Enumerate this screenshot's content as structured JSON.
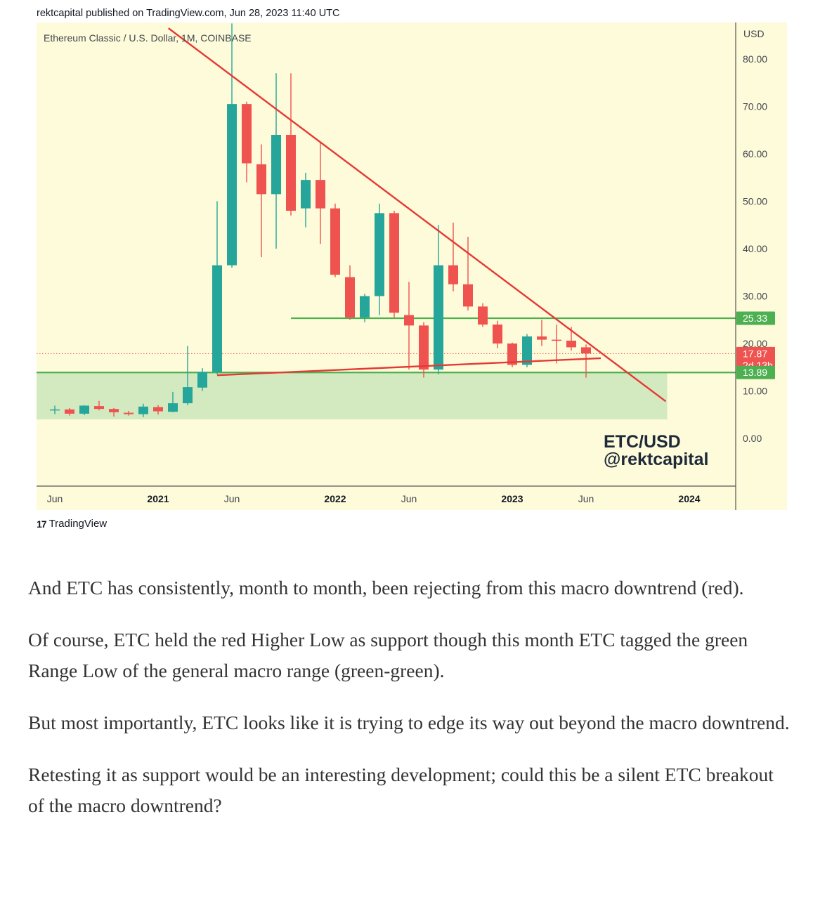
{
  "header": {
    "published": "rektcapital published on TradingView.com, Jun 28, 2023 11:40 UTC"
  },
  "chart_data": {
    "type": "candlestick",
    "title": "Ethereum Classic / U.S. Dollar, 1M, COINBASE",
    "currency": "USD",
    "ylim": [
      0,
      88
    ],
    "grid": false,
    "background": "#fdfbd9",
    "colors": {
      "up": "#26a69a",
      "down": "#ef5350",
      "line_red": "#e53935",
      "line_green": "#4caf50",
      "zone": "#d3eac0"
    },
    "y_ticks": [
      "80.00",
      "70.00",
      "60.00",
      "50.00",
      "40.00",
      "30.00",
      "20.00",
      "10.00",
      "0.00"
    ],
    "y_tick_values": [
      80,
      70,
      60,
      50,
      40,
      30,
      20,
      10,
      0
    ],
    "x_ticks": [
      {
        "label": "Jun",
        "month": 0,
        "bold": false
      },
      {
        "label": "2021",
        "month": 7,
        "bold": true
      },
      {
        "label": "Jun",
        "month": 12,
        "bold": false
      },
      {
        "label": "2022",
        "month": 19,
        "bold": true
      },
      {
        "label": "Jun",
        "month": 24,
        "bold": false
      },
      {
        "label": "2023",
        "month": 31,
        "bold": true
      },
      {
        "label": "Jun",
        "month": 36,
        "bold": false
      },
      {
        "label": "2024",
        "month": 43,
        "bold": true
      }
    ],
    "candles": [
      {
        "o": 6.0,
        "h": 6.9,
        "l": 5.1,
        "c": 6.1
      },
      {
        "o": 6.1,
        "h": 6.4,
        "l": 4.8,
        "c": 5.2
      },
      {
        "o": 5.2,
        "h": 7.0,
        "l": 4.9,
        "c": 6.9
      },
      {
        "o": 6.8,
        "h": 7.9,
        "l": 5.9,
        "c": 6.2
      },
      {
        "o": 6.2,
        "h": 6.4,
        "l": 4.6,
        "c": 5.5
      },
      {
        "o": 5.4,
        "h": 5.8,
        "l": 4.8,
        "c": 5.1
      },
      {
        "o": 5.1,
        "h": 7.3,
        "l": 4.5,
        "c": 6.7
      },
      {
        "o": 6.6,
        "h": 7.0,
        "l": 5.0,
        "c": 5.7
      },
      {
        "o": 5.6,
        "h": 9.8,
        "l": 5.5,
        "c": 7.4
      },
      {
        "o": 7.4,
        "h": 19.5,
        "l": 7.0,
        "c": 10.8
      },
      {
        "o": 10.7,
        "h": 14.8,
        "l": 10.0,
        "c": 14.0
      },
      {
        "o": 14.0,
        "h": 50.0,
        "l": 13.5,
        "c": 36.5
      },
      {
        "o": 36.5,
        "h": 87.5,
        "l": 36.0,
        "c": 70.5
      },
      {
        "o": 70.5,
        "h": 71.0,
        "l": 54.0,
        "c": 58.0
      },
      {
        "o": 57.8,
        "h": 62.0,
        "l": 38.2,
        "c": 51.5
      },
      {
        "o": 51.5,
        "h": 77.0,
        "l": 40.0,
        "c": 64.0
      },
      {
        "o": 64.0,
        "h": 77.0,
        "l": 47.0,
        "c": 48.0
      },
      {
        "o": 48.5,
        "h": 56.0,
        "l": 44.5,
        "c": 54.5
      },
      {
        "o": 54.5,
        "h": 62.5,
        "l": 41.0,
        "c": 48.5
      },
      {
        "o": 48.5,
        "h": 49.5,
        "l": 34.0,
        "c": 34.5
      },
      {
        "o": 34.0,
        "h": 36.5,
        "l": 25.0,
        "c": 25.5
      },
      {
        "o": 25.5,
        "h": 30.5,
        "l": 24.5,
        "c": 30.0
      },
      {
        "o": 30.0,
        "h": 49.5,
        "l": 26.0,
        "c": 47.5
      },
      {
        "o": 47.5,
        "h": 48.0,
        "l": 25.5,
        "c": 26.5
      },
      {
        "o": 26.0,
        "h": 33.0,
        "l": 14.5,
        "c": 23.8
      },
      {
        "o": 23.8,
        "h": 24.5,
        "l": 12.8,
        "c": 14.5
      },
      {
        "o": 14.5,
        "h": 45.0,
        "l": 13.5,
        "c": 36.5
      },
      {
        "o": 36.5,
        "h": 45.5,
        "l": 31.0,
        "c": 32.5
      },
      {
        "o": 32.5,
        "h": 42.5,
        "l": 27.0,
        "c": 27.8
      },
      {
        "o": 27.8,
        "h": 28.5,
        "l": 23.5,
        "c": 24.0
      },
      {
        "o": 24.0,
        "h": 24.8,
        "l": 19.0,
        "c": 20.0
      },
      {
        "o": 20.0,
        "h": 20.2,
        "l": 15.0,
        "c": 15.5
      },
      {
        "o": 15.5,
        "h": 22.0,
        "l": 15.0,
        "c": 21.5
      },
      {
        "o": 21.5,
        "h": 25.0,
        "l": 19.5,
        "c": 20.8
      },
      {
        "o": 20.8,
        "h": 24.0,
        "l": 15.8,
        "c": 20.6
      },
      {
        "o": 20.6,
        "h": 23.5,
        "l": 18.5,
        "c": 19.2
      },
      {
        "o": 19.2,
        "h": 19.8,
        "l": 12.8,
        "c": 17.9
      }
    ],
    "lines": [
      {
        "name": "macro-downtrend",
        "color": "red",
        "from": {
          "month": 7.7,
          "value": 86.5
        },
        "to": {
          "month": 41.4,
          "value": 7.8
        }
      },
      {
        "name": "higher-low",
        "color": "red",
        "from": {
          "month": 11.0,
          "value": 13.3
        },
        "to": {
          "month": 37.0,
          "value": 16.9
        }
      },
      {
        "name": "range-high",
        "color": "green",
        "value": 25.33,
        "from_month": 16.0,
        "to_month": 100
      },
      {
        "name": "range-low",
        "color": "green",
        "value": 13.89,
        "from_month": -100,
        "to_month": 100
      }
    ],
    "zone": {
      "from_month": -100,
      "to_month": 41.5,
      "top": 13.89,
      "bottom": 4.0
    },
    "current_price_line": 17.87,
    "price_labels": [
      {
        "text": "25.33",
        "value": 25.33,
        "color": "#4caf50"
      },
      {
        "text": "17.87",
        "subtext": "2d 13h",
        "value": 17.87,
        "color": "#ef5350"
      },
      {
        "text": "13.89",
        "value": 13.89,
        "color": "#4caf50"
      }
    ],
    "watermark": [
      "ETC/USD",
      "@rektcapital"
    ]
  },
  "footer": {
    "brand": "TradingView",
    "brand_mark": "17"
  },
  "article": {
    "paragraphs": [
      "And ETC has consistently, month to month, been rejecting from this macro downtrend (red).",
      "Of course, ETC held the red Higher Low as support though this month ETC tagged the green Range Low of the general macro range (green-green).",
      "But most importantly, ETC looks like it is trying to edge its way out beyond the macro downtrend.",
      "Retesting it as support would be an interesting development; could this be a silent ETC breakout of the macro downtrend?"
    ]
  }
}
